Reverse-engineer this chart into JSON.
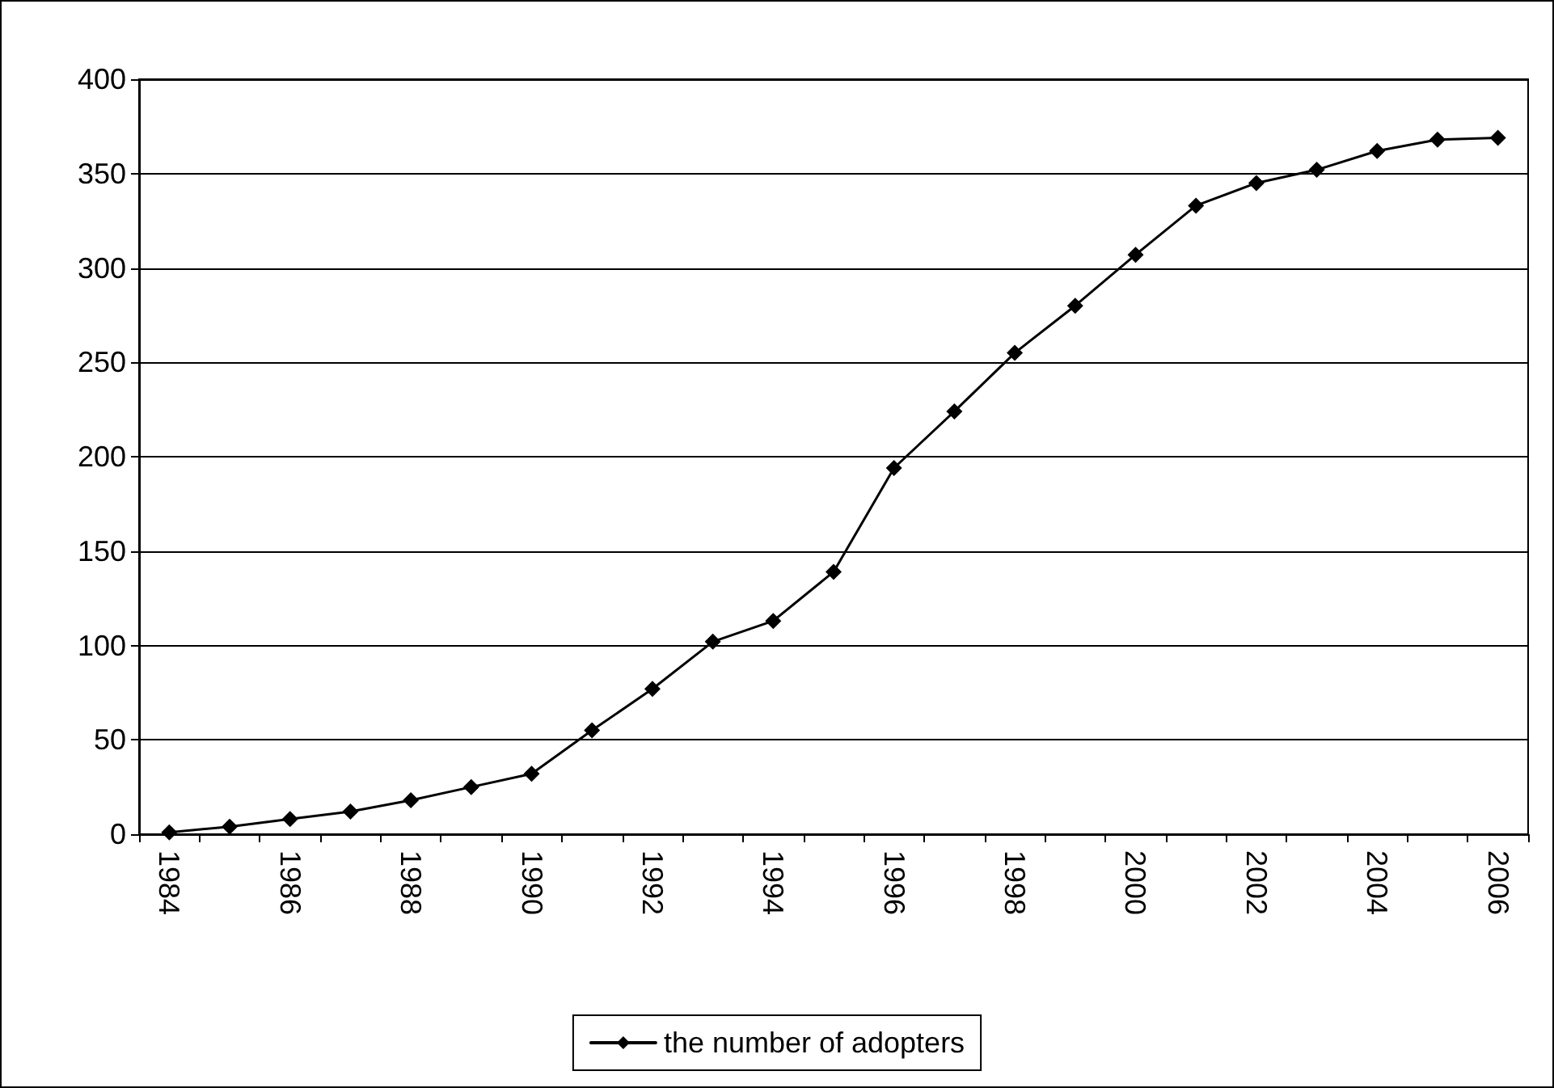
{
  "chart_data": {
    "type": "line",
    "categories": [
      "1984",
      null,
      "1986",
      null,
      "1988",
      null,
      "1990",
      null,
      "1992",
      null,
      "1994",
      null,
      "1996",
      null,
      "1998",
      null,
      "2000",
      null,
      "2002",
      null,
      "2004",
      null,
      "2006"
    ],
    "series": [
      {
        "name": "the number of adopters",
        "color": "#000000",
        "values": [
          1,
          4,
          8,
          12,
          18,
          25,
          32,
          55,
          77,
          102,
          113,
          139,
          194,
          224,
          255,
          280,
          307,
          333,
          345,
          352,
          362,
          368,
          369
        ]
      }
    ],
    "ylim": [
      0,
      400
    ],
    "yticks": [
      0,
      50,
      100,
      150,
      200,
      250,
      300,
      350,
      400
    ],
    "grid": "y",
    "legend": "bottom",
    "marker": "diamond",
    "line_style": "solid"
  }
}
